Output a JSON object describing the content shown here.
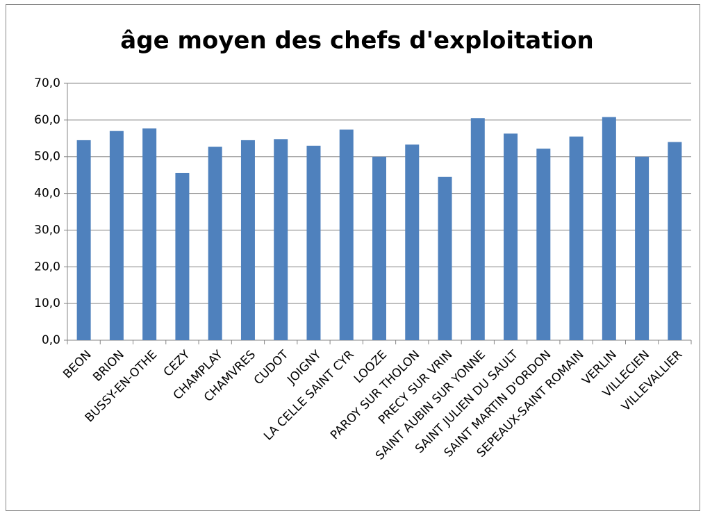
{
  "chart_data": {
    "type": "bar",
    "title": "âge moyen des chefs d'exploitation",
    "categories": [
      "BEON",
      "BRION",
      "BUSSY-EN-OTHE",
      "CEZY",
      "CHAMPLAY",
      "CHAMVRES",
      "CUDOT",
      "JOIGNY",
      "LA CELLE SAINT CYR",
      "LOOZE",
      "PAROY SUR THOLON",
      "PRECY SUR VRIN",
      "SAINT AUBIN SUR YONNE",
      "SAINT JULIEN DU SAULT",
      "SAINT MARTIN D'ORDON",
      "SEPEAUX-SAINT ROMAIN",
      "VERLIN",
      "VILLECIEN",
      "VILLEVALLIER"
    ],
    "values": [
      54.5,
      57.0,
      57.7,
      45.6,
      52.7,
      54.5,
      54.8,
      53.0,
      57.4,
      50.0,
      53.3,
      44.5,
      60.5,
      56.3,
      52.2,
      55.5,
      60.8,
      50.0,
      54.0
    ],
    "color": "#4f81bd",
    "ylim": [
      0,
      70
    ],
    "yticks": [
      {
        "value": 0,
        "label": "0,0"
      },
      {
        "value": 10,
        "label": "10,0"
      },
      {
        "value": 20,
        "label": "20,0"
      },
      {
        "value": 30,
        "label": "30,0"
      },
      {
        "value": 40,
        "label": "40,0"
      },
      {
        "value": 50,
        "label": "50,0"
      },
      {
        "value": 60,
        "label": "60,0"
      },
      {
        "value": 70,
        "label": "70,0"
      }
    ],
    "grid": true
  }
}
